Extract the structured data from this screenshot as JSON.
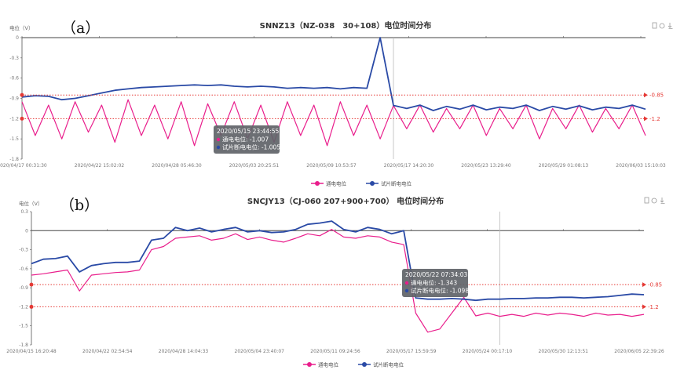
{
  "colors": {
    "on_potential": "#e91e8c",
    "off_potential": "#2a4aa6",
    "reference": "#e53935",
    "tooltip_bg": "#5f6368"
  },
  "toolbox_icons": [
    "data-view-icon",
    "refresh-icon",
    "download-icon"
  ],
  "chart_data": [
    {
      "type": "line",
      "panel_label": "（a）",
      "title": "SNNZ13（NZ-038　30+108）电位时间分布",
      "ylabel": "电位（V）",
      "ylim": [
        -1.8,
        0
      ],
      "yticks": [
        "0",
        "-0.3",
        "-0.6",
        "-0.9",
        "-1.2",
        "-1.5",
        "-1.8"
      ],
      "ytick_values": [
        0,
        -0.3,
        -0.6,
        -0.9,
        -1.2,
        -1.5,
        -1.8
      ],
      "xlim": [
        "2020-04-17",
        "2020-06-03"
      ],
      "xticks": [
        "2020/04/17 00:31:30",
        "2020/04/22 15:02:02",
        "2020/04/28 05:46:30",
        "2020/05/03 20:25:51",
        "2020/05/09 10:53:57",
        "2020/05/17 14:20:30",
        "2020/05/23 13:29:40",
        "2020/05/29 01:08:13",
        "2020/06/03 15:10:03"
      ],
      "reference_lines": [
        {
          "value": -0.85,
          "label": "-0.85"
        },
        {
          "value": -1.2,
          "label": "-1.2"
        }
      ],
      "legend": {
        "position": "bottom",
        "entries": [
          "通电电位",
          "试片断电电位"
        ]
      },
      "cursor_date": "2020-05-15",
      "tooltip": {
        "time": "2020/05/15 23:44:55",
        "rows": [
          "通电电位: -1.007",
          "试片断电电位: -1.005"
        ]
      },
      "x": [
        "2020-04-17",
        "2020-04-18",
        "2020-04-19",
        "2020-04-20",
        "2020-04-21",
        "2020-04-22",
        "2020-04-23",
        "2020-04-24",
        "2020-04-25",
        "2020-04-26",
        "2020-04-27",
        "2020-04-28",
        "2020-04-29",
        "2020-04-30",
        "2020-05-01",
        "2020-05-02",
        "2020-05-03",
        "2020-05-04",
        "2020-05-05",
        "2020-05-06",
        "2020-05-07",
        "2020-05-08",
        "2020-05-09",
        "2020-05-10",
        "2020-05-11",
        "2020-05-12",
        "2020-05-13",
        "2020-05-14",
        "2020-05-15",
        "2020-05-16",
        "2020-05-17",
        "2020-05-18",
        "2020-05-19",
        "2020-05-20",
        "2020-05-21",
        "2020-05-22",
        "2020-05-23",
        "2020-05-24",
        "2020-05-25",
        "2020-05-26",
        "2020-05-27",
        "2020-05-28",
        "2020-05-29",
        "2020-05-30",
        "2020-05-31",
        "2020-06-01",
        "2020-06-02",
        "2020-06-03"
      ],
      "series": [
        {
          "name": "通电电位",
          "values": [
            -0.95,
            -1.45,
            -1.0,
            -1.5,
            -0.95,
            -1.4,
            -1.0,
            -1.55,
            -0.92,
            -1.45,
            -1.0,
            -1.5,
            -0.95,
            -1.6,
            -0.98,
            -1.45,
            -0.95,
            -1.5,
            -1.0,
            -1.55,
            -0.95,
            -1.45,
            -1.0,
            -1.6,
            -0.95,
            -1.45,
            -1.0,
            -1.5,
            -1.007,
            -1.35,
            -1.0,
            -1.4,
            -1.05,
            -1.35,
            -1.0,
            -1.45,
            -1.05,
            -1.35,
            -1.0,
            -1.5,
            -1.05,
            -1.35,
            -1.0,
            -1.4,
            -1.05,
            -1.35,
            -1.0,
            -1.45
          ]
        },
        {
          "name": "试片断电电位",
          "values": [
            -0.88,
            -0.86,
            -0.87,
            -0.92,
            -0.9,
            -0.86,
            -0.82,
            -0.78,
            -0.76,
            -0.74,
            -0.73,
            -0.72,
            -0.71,
            -0.7,
            -0.71,
            -0.7,
            -0.72,
            -0.73,
            -0.72,
            -0.73,
            -0.75,
            -0.74,
            -0.75,
            -0.74,
            -0.76,
            -0.74,
            -0.75,
            0,
            -1.005,
            -1.05,
            -1.0,
            -1.08,
            -1.02,
            -1.06,
            -1.0,
            -1.07,
            -1.03,
            -1.05,
            -1.0,
            -1.08,
            -1.02,
            -1.06,
            -1.01,
            -1.07,
            -1.03,
            -1.05,
            -1.0,
            -1.06
          ]
        }
      ]
    },
    {
      "type": "line",
      "panel_label": "（b）",
      "title": "SNCJY13（CJ-060 207+900+700） 电位时间分布",
      "ylabel": "电位（V）",
      "ylim": [
        -1.8,
        0.3
      ],
      "yticks": [
        "0.3",
        "0",
        "-0.3",
        "-0.6",
        "-0.9",
        "-1.2",
        "-1.5",
        "-1.8"
      ],
      "ytick_values": [
        0.3,
        0,
        -0.3,
        -0.6,
        -0.9,
        -1.2,
        -1.5,
        -1.8
      ],
      "xlim": [
        "2020-04-15",
        "2020-06-05"
      ],
      "xticks": [
        "2020/04/15 16:20:48",
        "2020/04/22 02:54:54",
        "2020/04/28 14:04:33",
        "2020/05/04 23:40:07",
        "2020/05/11 09:24:56",
        "2020/05/17 15:59:59",
        "2020/05/24 00:17:10",
        "2020/05/30 12:13:51",
        "2020/06/05 22:39:26"
      ],
      "reference_lines": [
        {
          "value": -0.85,
          "label": "-0.85"
        },
        {
          "value": -1.2,
          "label": "-1.2"
        }
      ],
      "legend": {
        "position": "bottom",
        "entries": [
          "通电电位",
          "试片断电电位"
        ]
      },
      "cursor_date": "2020-05-24",
      "tooltip": {
        "time": "2020/05/22 07:34:03",
        "rows": [
          "通电电位: -1.343",
          "试片断电电位: -1.098"
        ]
      },
      "x": [
        "2020-04-15",
        "2020-04-16",
        "2020-04-17",
        "2020-04-18",
        "2020-04-19",
        "2020-04-20",
        "2020-04-21",
        "2020-04-22",
        "2020-04-23",
        "2020-04-24",
        "2020-04-25",
        "2020-04-26",
        "2020-04-27",
        "2020-04-28",
        "2020-04-29",
        "2020-04-30",
        "2020-05-01",
        "2020-05-02",
        "2020-05-03",
        "2020-05-04",
        "2020-05-05",
        "2020-05-06",
        "2020-05-07",
        "2020-05-08",
        "2020-05-09",
        "2020-05-10",
        "2020-05-11",
        "2020-05-12",
        "2020-05-13",
        "2020-05-14",
        "2020-05-15",
        "2020-05-16",
        "2020-05-17",
        "2020-05-18",
        "2020-05-19",
        "2020-05-20",
        "2020-05-21",
        "2020-05-22",
        "2020-05-23",
        "2020-05-24",
        "2020-05-25",
        "2020-05-26",
        "2020-05-27",
        "2020-05-28",
        "2020-05-29",
        "2020-05-30",
        "2020-05-31",
        "2020-06-01",
        "2020-06-02",
        "2020-06-03",
        "2020-06-04",
        "2020-06-05"
      ],
      "series": [
        {
          "name": "通电电位",
          "values": [
            -0.7,
            -0.68,
            -0.65,
            -0.62,
            -0.95,
            -0.7,
            -0.68,
            -0.66,
            -0.65,
            -0.62,
            -0.3,
            -0.25,
            -0.12,
            -0.1,
            -0.08,
            -0.15,
            -0.12,
            -0.05,
            -0.14,
            -0.1,
            -0.15,
            -0.18,
            -0.12,
            -0.05,
            -0.08,
            0.02,
            -0.1,
            -0.12,
            -0.08,
            -0.1,
            -0.18,
            -0.22,
            -1.3,
            -1.6,
            -1.55,
            -1.3,
            -1.05,
            -1.343,
            -1.3,
            -1.35,
            -1.32,
            -1.35,
            -1.3,
            -1.33,
            -1.3,
            -1.32,
            -1.35,
            -1.3,
            -1.33,
            -1.32,
            -1.35,
            -1.32
          ]
        },
        {
          "name": "试片断电电位",
          "values": [
            -0.52,
            -0.45,
            -0.44,
            -0.4,
            -0.65,
            -0.55,
            -0.52,
            -0.5,
            -0.5,
            -0.48,
            -0.15,
            -0.12,
            0.05,
            0.0,
            0.04,
            -0.02,
            0.02,
            0.05,
            -0.02,
            0.0,
            -0.03,
            -0.02,
            0.02,
            0.1,
            0.12,
            0.15,
            0.02,
            -0.02,
            0.05,
            0.02,
            -0.05,
            0.0,
            -1.06,
            -1.08,
            -1.08,
            -1.07,
            -1.08,
            -1.098,
            -1.08,
            -1.08,
            -1.07,
            -1.07,
            -1.06,
            -1.06,
            -1.05,
            -1.05,
            -1.06,
            -1.05,
            -1.04,
            -1.02,
            -1.0,
            -1.01
          ]
        }
      ]
    }
  ]
}
